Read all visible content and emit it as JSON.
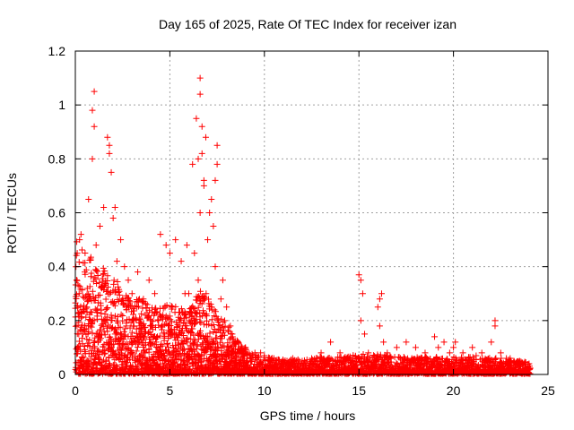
{
  "chart_data": {
    "type": "scatter",
    "title": "Day 165 of 2025, Rate Of TEC Index for receiver izan",
    "xlabel": "GPS time / hours",
    "ylabel": "ROTI / TECUs",
    "xlim": [
      0,
      25
    ],
    "ylim": [
      0,
      1.2
    ],
    "xticks": [
      "0",
      "5",
      "10",
      "15",
      "20",
      "25"
    ],
    "yticks": [
      "0",
      "0.2",
      "0.4",
      "0.6",
      "0.8",
      "1",
      "1.2"
    ],
    "grid": true,
    "marker": "plus",
    "color": "#ff0000",
    "x": [
      0.1,
      0.3,
      0.5,
      0.7,
      0.9,
      1.0,
      1.1,
      1.3,
      1.5,
      1.7,
      1.8,
      2.0,
      2.2,
      2.4,
      2.6,
      2.8,
      3.0,
      3.3,
      3.6,
      3.9,
      4.2,
      4.5,
      4.8,
      5.0,
      5.3,
      5.6,
      5.9,
      6.2,
      6.4,
      6.6,
      6.7,
      6.9,
      7.1,
      7.3,
      7.5,
      7.7,
      8.0,
      8.3,
      8.6,
      9.0,
      9.5,
      10.0,
      10.5,
      11.0,
      11.5,
      12.0,
      12.5,
      13.0,
      13.5,
      14.0,
      14.5,
      15.0,
      15.2,
      15.5,
      16.0,
      16.2,
      16.5,
      17.0,
      17.5,
      18.0,
      18.5,
      19.0,
      19.5,
      20.0,
      20.5,
      21.0,
      21.5,
      22.0,
      22.2,
      22.5,
      23.0,
      23.5,
      24.0,
      0.2,
      0.6,
      1.0,
      1.4,
      1.9,
      2.5,
      3.1,
      3.7,
      4.4,
      5.1,
      5.8,
      6.5,
      7.2,
      7.9,
      8.8,
      9.8,
      11.2,
      12.8,
      14.2,
      15.1,
      16.1,
      17.8,
      19.2,
      20.1,
      21.2,
      22.8,
      23.8,
      0.4,
      0.8,
      1.2,
      1.6,
      2.1,
      2.7,
      3.4,
      4.0,
      4.7,
      5.5,
      6.0,
      6.3,
      6.6,
      6.8,
      7.0,
      7.4,
      7.8,
      8.2,
      8.9,
      9.3,
      10.2,
      11.8,
      13.2,
      14.8,
      15.3,
      16.3,
      18.2,
      19.8,
      20.8,
      21.8,
      23.2,
      0.9,
      1.0,
      1.8,
      1.9,
      2.1,
      6.5,
      6.6,
      6.7,
      6.8,
      7.2,
      7.4,
      7.5,
      15.1,
      16.1,
      22.2
    ],
    "y": [
      0.45,
      0.52,
      0.38,
      0.65,
      0.8,
      1.05,
      0.48,
      0.55,
      0.62,
      0.88,
      0.82,
      0.58,
      0.42,
      0.5,
      0.4,
      0.35,
      0.3,
      0.38,
      0.28,
      0.35,
      0.3,
      0.52,
      0.48,
      0.45,
      0.5,
      0.42,
      0.48,
      0.78,
      0.95,
      1.1,
      0.82,
      0.88,
      0.6,
      0.55,
      0.85,
      0.28,
      0.25,
      0.15,
      0.12,
      0.1,
      0.08,
      0.07,
      0.06,
      0.05,
      0.06,
      0.05,
      0.06,
      0.08,
      0.12,
      0.08,
      0.06,
      0.37,
      0.3,
      0.08,
      0.25,
      0.3,
      0.08,
      0.1,
      0.12,
      0.1,
      0.08,
      0.14,
      0.12,
      0.1,
      0.08,
      0.1,
      0.08,
      0.12,
      0.2,
      0.08,
      0.06,
      0.05,
      0.04,
      0.3,
      0.25,
      0.2,
      0.32,
      0.22,
      0.28,
      0.18,
      0.22,
      0.2,
      0.25,
      0.3,
      0.35,
      0.25,
      0.2,
      0.1,
      0.08,
      0.05,
      0.04,
      0.06,
      0.2,
      0.18,
      0.06,
      0.1,
      0.12,
      0.07,
      0.06,
      0.04,
      0.15,
      0.18,
      0.12,
      0.2,
      0.15,
      0.18,
      0.12,
      0.2,
      0.15,
      0.18,
      0.3,
      0.45,
      0.6,
      0.72,
      0.5,
      0.4,
      0.35,
      0.18,
      0.08,
      0.06,
      0.05,
      0.04,
      0.05,
      0.06,
      0.15,
      0.12,
      0.05,
      0.08,
      0.06,
      0.05,
      0.05,
      0.98,
      0.92,
      0.85,
      0.75,
      0.62,
      0.8,
      1.04,
      0.92,
      0.7,
      0.65,
      0.72,
      0.78,
      0.35,
      0.28,
      0.18
    ],
    "dense_band": {
      "x": [
        0,
        0.5,
        1,
        1.5,
        2,
        2.5,
        3,
        3.5,
        4,
        4.5,
        5,
        5.5,
        6,
        6.5,
        7,
        7.5,
        8,
        8.5,
        9,
        9.5,
        10,
        11,
        12,
        13,
        14,
        15,
        16,
        17,
        18,
        19,
        20,
        21,
        22,
        23,
        24
      ],
      "y_max": [
        0.5,
        0.45,
        0.4,
        0.38,
        0.35,
        0.3,
        0.28,
        0.26,
        0.25,
        0.24,
        0.25,
        0.24,
        0.22,
        0.3,
        0.28,
        0.22,
        0.18,
        0.12,
        0.09,
        0.07,
        0.06,
        0.05,
        0.05,
        0.06,
        0.06,
        0.07,
        0.07,
        0.06,
        0.06,
        0.06,
        0.06,
        0.06,
        0.06,
        0.05,
        0.04
      ]
    }
  }
}
